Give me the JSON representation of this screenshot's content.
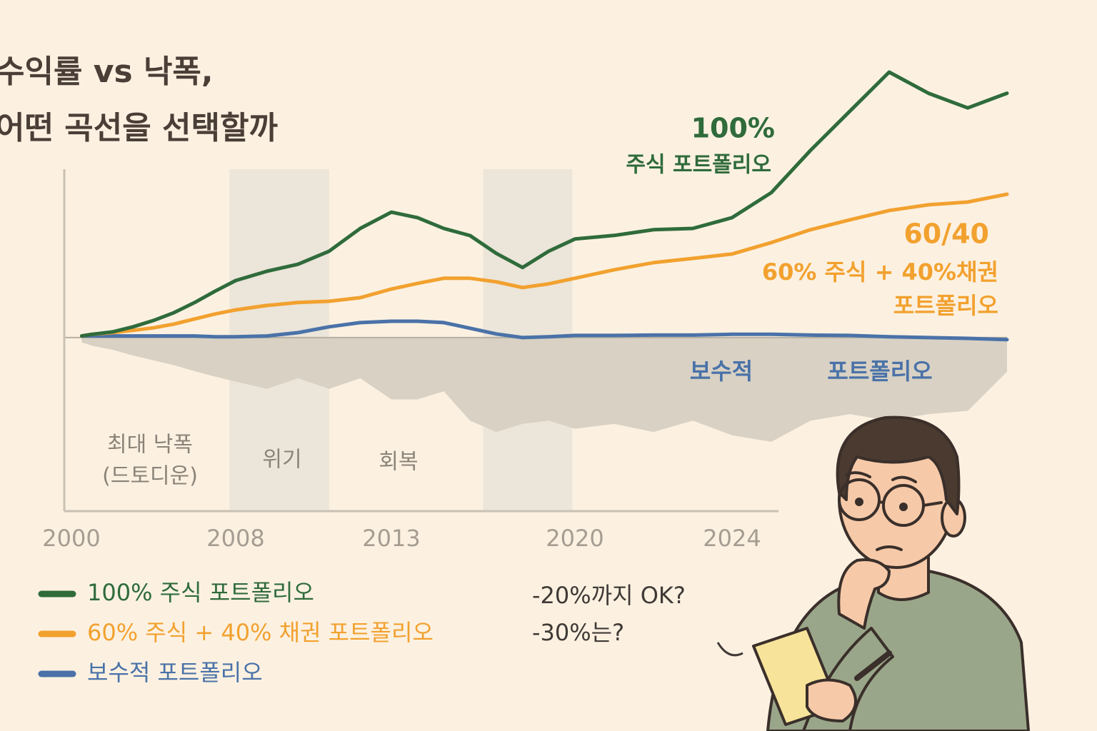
{
  "title_lines": [
    "수익률 vs 낙폭,",
    "어떤 곡선을 선택할까"
  ],
  "chart_data": {
    "type": "line",
    "x": [
      2000.5,
      2001,
      2002,
      2003,
      2004,
      2005,
      2006,
      2007,
      2008,
      2009,
      2010,
      2011,
      2012,
      2013,
      2014,
      2015,
      2016,
      2017,
      2018,
      2019,
      2020,
      2021,
      2022,
      2023,
      2024,
      2025,
      2026,
      2027,
      2028,
      2029,
      2030,
      2031
    ],
    "xlim": [
      2000,
      2031
    ],
    "xticks": [
      2000,
      2008,
      2013,
      2020,
      2024
    ],
    "ylim": [
      -100,
      170
    ],
    "series": [
      {
        "name": "100% 주식 포트폴리오",
        "color": "#2f6b3b",
        "values": [
          1,
          2,
          3.5,
          6.6,
          10.5,
          15.3,
          21.5,
          28.5,
          35,
          40.7,
          45,
          53,
          67,
          77,
          73.6,
          67,
          62.6,
          51.7,
          43,
          53,
          60.5,
          62.7,
          66.2,
          67,
          73.6,
          89,
          115,
          139,
          163,
          150,
          141,
          150
        ]
      },
      {
        "name": "60% 주식 + 40% 채권 포트폴리오",
        "color": "#f2a12f",
        "values": [
          1,
          2,
          3,
          4.4,
          6,
          8.3,
          11.4,
          14.5,
          17,
          19.7,
          21.5,
          22.3,
          24.5,
          29.8,
          33.3,
          36.4,
          36.4,
          34.2,
          30.7,
          33,
          36.4,
          41.6,
          46,
          48.6,
          51.3,
          58.3,
          66.2,
          72.3,
          78,
          81.5,
          83.2,
          88
        ]
      },
      {
        "name": "보수적 포트폴리오",
        "color": "#4a72a8",
        "values": [
          1,
          1,
          1,
          1,
          1,
          1,
          1,
          0.5,
          0.5,
          1,
          3,
          6.6,
          9.2,
          10,
          10,
          9.2,
          5.7,
          2.2,
          0,
          0.5,
          1.3,
          1.3,
          1.5,
          1.5,
          2,
          2,
          1.5,
          1.3,
          0.5,
          0,
          -0.5,
          -1.3
        ]
      }
    ],
    "area": {
      "label": [
        "최대 낙폭",
        "(드토디운)"
      ],
      "color": "#d8d1c4",
      "values": [
        -3,
        -5,
        -7.5,
        -11,
        -14,
        -17,
        -20.6,
        -24,
        -27,
        -31.5,
        -25,
        -31.5,
        -25,
        -38,
        -38,
        -33,
        -51,
        -58,
        -53,
        -51,
        -56,
        -53,
        -58,
        -51,
        -60,
        -64,
        -51,
        -47,
        -51,
        -47,
        -45,
        -21
      ]
    },
    "spans": [
      [
        2007.7,
        2011
      ],
      [
        2016.5,
        2019.9
      ]
    ],
    "span_color": "#ece5d9",
    "annotations": [
      {
        "text": "위기",
        "color": "#8a8378"
      },
      {
        "text": "회복",
        "color": "#8a8378"
      },
      {
        "text": "100%",
        "color": "#2f6b3b"
      },
      {
        "text": "주식 포트폴리오",
        "color": "#2f6b3b"
      },
      {
        "text": "60/40",
        "color": "#f2a12f"
      },
      {
        "text": "60% 주식 + 40%채권",
        "color": "#f2a12f"
      },
      {
        "text": "포트폴리오",
        "color": "#f2a12f"
      },
      {
        "text": "보수적",
        "color": "#4a72a8"
      },
      {
        "text": "포트폴리오",
        "color": "#4a72a8"
      }
    ]
  },
  "speech": [
    "-20%까지 OK?",
    "-30%는?"
  ]
}
